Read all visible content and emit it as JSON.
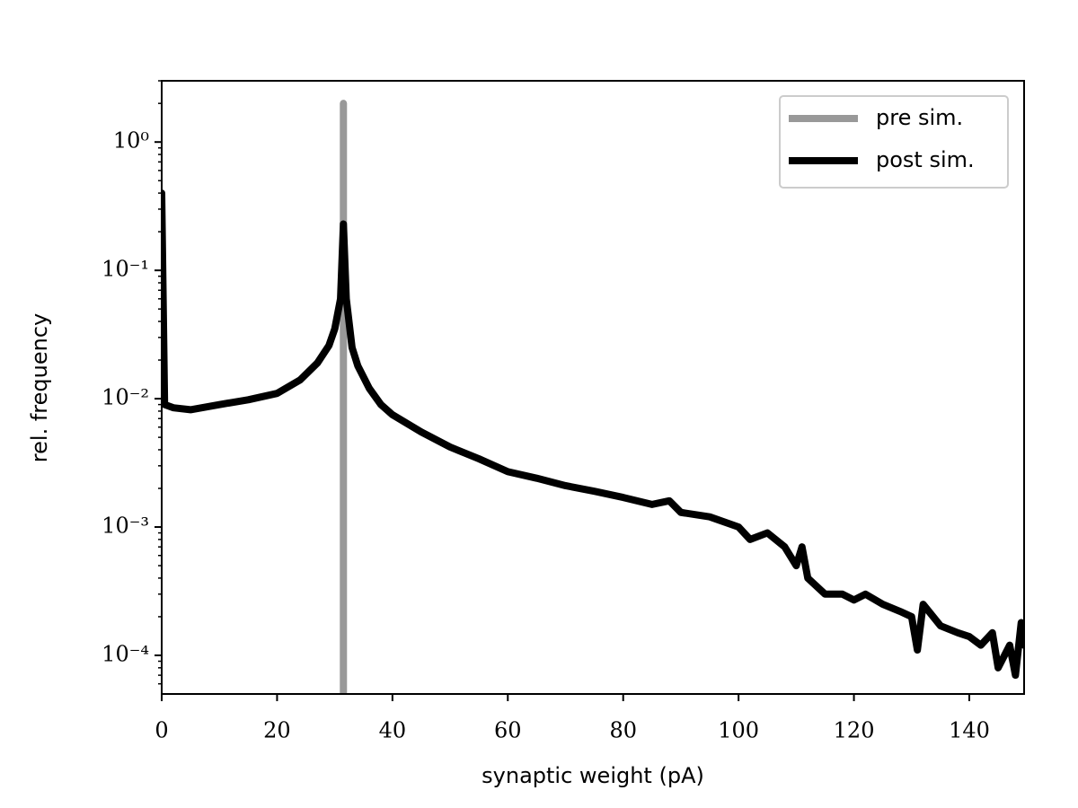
{
  "chart_data": {
    "type": "line",
    "xlabel": "synaptic weight (pA)",
    "ylabel": "rel. frequency",
    "xlim": [
      0,
      149.5
    ],
    "ylim": [
      5e-05,
      3
    ],
    "yscale": "log",
    "xticks": [
      0,
      20,
      40,
      60,
      80,
      100,
      120,
      140
    ],
    "yticks": [
      {
        "value": 0.0001,
        "label": "10⁻⁴"
      },
      {
        "value": 0.001,
        "label": "10⁻³"
      },
      {
        "value": 0.01,
        "label": "10⁻²"
      },
      {
        "value": 0.1,
        "label": "10⁻¹"
      },
      {
        "value": 1,
        "label": "10⁰"
      }
    ],
    "yminorticks": [
      6e-05,
      7e-05,
      8e-05,
      9e-05,
      0.0002,
      0.0003,
      0.0004,
      0.0005,
      0.0006,
      0.0007,
      0.0008,
      0.0009,
      0.002,
      0.003,
      0.004,
      0.005,
      0.006,
      0.007,
      0.008,
      0.009,
      0.02,
      0.03,
      0.04,
      0.05,
      0.06,
      0.07,
      0.08,
      0.09,
      0.2,
      0.3,
      0.4,
      0.5,
      0.6,
      0.7,
      0.8,
      0.9,
      2,
      3
    ],
    "legend": "upper right",
    "series": [
      {
        "name": "pre sim.",
        "color": "#999999",
        "x": [
          31.5,
          31.5
        ],
        "values": [
          5e-05,
          2
        ]
      },
      {
        "name": "post sim.",
        "color": "#000000",
        "x": [
          0,
          0.5,
          2,
          5,
          10,
          15,
          20,
          24,
          27,
          29,
          30,
          31,
          31.5,
          32,
          33,
          34,
          36,
          38,
          40,
          45,
          50,
          55,
          60,
          65,
          70,
          75,
          80,
          85,
          88,
          90,
          95,
          100,
          102,
          105,
          108,
          110,
          111,
          112,
          115,
          118,
          120,
          122,
          125,
          128,
          130,
          131,
          132,
          135,
          138,
          140,
          142,
          144,
          145,
          147,
          148,
          149,
          149.5
        ],
        "values": [
          0.4,
          0.009,
          0.0085,
          0.0082,
          0.009,
          0.0098,
          0.011,
          0.014,
          0.019,
          0.026,
          0.035,
          0.06,
          0.23,
          0.06,
          0.025,
          0.018,
          0.012,
          0.009,
          0.0075,
          0.0055,
          0.0042,
          0.0034,
          0.0027,
          0.0024,
          0.0021,
          0.0019,
          0.0017,
          0.0015,
          0.0016,
          0.0013,
          0.0012,
          0.001,
          0.0008,
          0.0009,
          0.0007,
          0.0005,
          0.0007,
          0.0004,
          0.0003,
          0.0003,
          0.00027,
          0.0003,
          0.00025,
          0.00022,
          0.0002,
          0.00011,
          0.00025,
          0.00017,
          0.00015,
          0.00014,
          0.00012,
          0.00015,
          8e-05,
          0.00012,
          7e-05,
          0.00018,
          0.00012
        ]
      }
    ]
  }
}
